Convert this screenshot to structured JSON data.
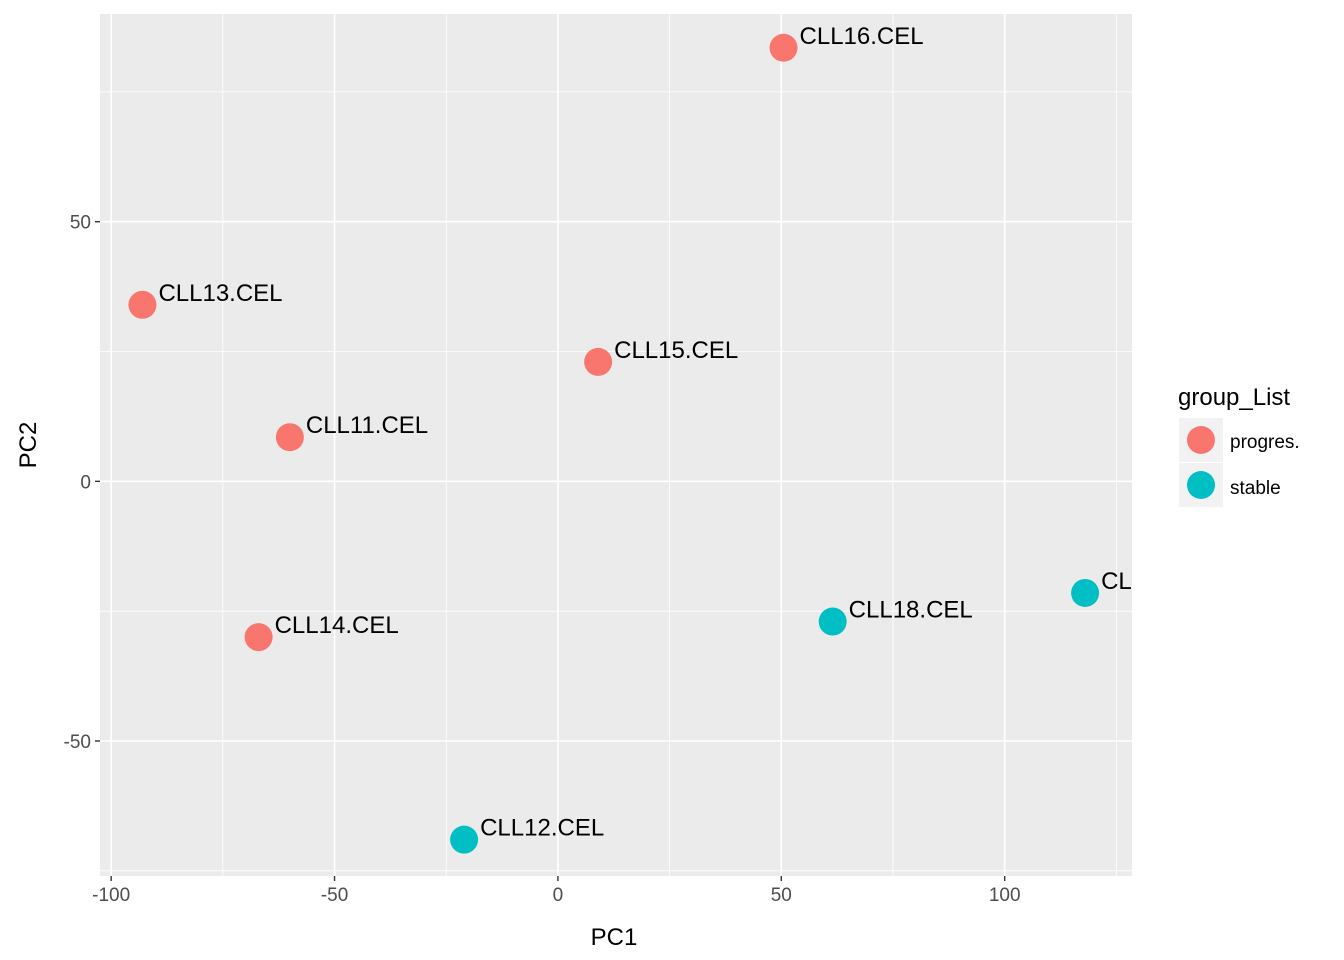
{
  "chart_data": {
    "type": "scatter",
    "xlabel": "PC1",
    "ylabel": "PC2",
    "xlim": [
      -102.5,
      128.5
    ],
    "ylim": [
      -76,
      90
    ],
    "x_ticks": [
      -100,
      -50,
      0,
      50,
      100
    ],
    "y_ticks": [
      -50,
      0,
      50
    ],
    "x_tick_labels": [
      "-100",
      "-50",
      "0",
      "50",
      "100"
    ],
    "y_tick_labels": [
      "-50",
      "0",
      "50"
    ],
    "grid": true,
    "legend": {
      "title": "group_List",
      "position": "right",
      "entries": [
        {
          "label": "progres.",
          "color": "#F8766D"
        },
        {
          "label": "stable",
          "color": "#00BFC4"
        }
      ]
    },
    "series": [
      {
        "name": "progres.",
        "color": "#F8766D",
        "points": [
          {
            "label": "CLL16.CEL",
            "x": 50.5,
            "y": 83.5
          },
          {
            "label": "CLL13.CEL",
            "x": -93,
            "y": 34
          },
          {
            "label": "CLL15.CEL",
            "x": 9,
            "y": 23
          },
          {
            "label": "CLL11.CEL",
            "x": -60,
            "y": 8.5
          },
          {
            "label": "CLL14.CEL",
            "x": -67,
            "y": -30
          }
        ]
      },
      {
        "name": "stable",
        "color": "#00BFC4",
        "points": [
          {
            "label": "CL",
            "x": 118,
            "y": -21.5
          },
          {
            "label": "CLL18.CEL",
            "x": 61.5,
            "y": -27
          },
          {
            "label": "CLL12.CEL",
            "x": -21,
            "y": -69
          }
        ]
      }
    ]
  }
}
